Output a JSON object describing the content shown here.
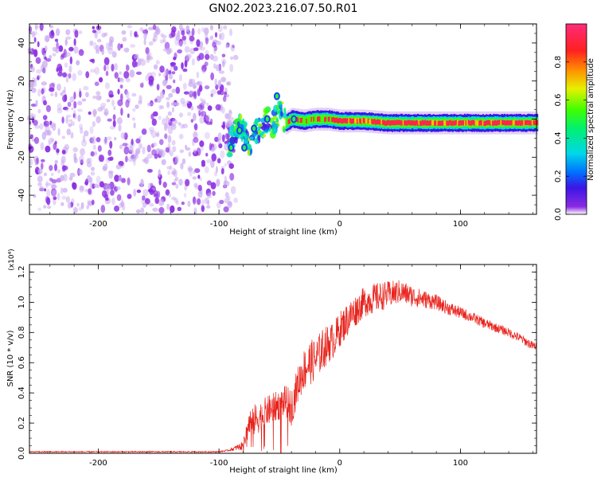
{
  "title": "GN02.2023.216.07.50.R01",
  "colors": {
    "snr_line": "#e8231c",
    "spectrogram_noise": "#8a2be2",
    "spectrogram_noise_light": "#c9a8f0",
    "spectrogram_background": "#ffffff"
  },
  "chart_data": [
    {
      "type": "heatmap",
      "name": "spectrogram",
      "xlabel": "Height of straight line (km)",
      "ylabel": "Frequency (Hz)",
      "xlim": [
        -257,
        163
      ],
      "ylim": [
        -50,
        50
      ],
      "xticks": [
        -200,
        -100,
        0,
        100
      ],
      "yticks": [
        -40,
        -20,
        0,
        20,
        40
      ],
      "colorbar": {
        "label": "Normalized spectral amplitude",
        "range": [
          0,
          1
        ],
        "ticks": [
          "0.0",
          "0.2",
          "0.4",
          "0.6",
          "0.8"
        ],
        "colormap": "rainbow (purple-blue-cyan-green-yellow-red-magenta)"
      },
      "features": [
        {
          "region": "noise",
          "x_range": [
            -257,
            -90
          ],
          "freq_range": [
            -50,
            50
          ],
          "amplitude": "low (0.0-0.15)"
        },
        {
          "region": "onset",
          "x_range": [
            -92,
            -45
          ],
          "freq_range": [
            -18,
            13
          ],
          "amplitude": "medium to high, scattered"
        },
        {
          "region": "stable signal",
          "x_range": [
            -45,
            163
          ],
          "freq_center": -2,
          "freq_halfwidth": 3,
          "amplitude": "high (0.8-1.0)"
        }
      ],
      "signal_track": {
        "x": [
          -92,
          -85,
          -80,
          -75,
          -70,
          -65,
          -60,
          -55,
          -50,
          -45,
          -40,
          -30,
          -20,
          -10,
          0,
          20,
          40,
          60,
          80,
          100,
          120,
          140,
          163
        ],
        "freq": [
          -15,
          -5,
          -4,
          -15,
          -6,
          -5,
          0,
          -3,
          5,
          -2,
          0,
          -1,
          0,
          0,
          -1,
          -1,
          -2,
          -2,
          -2,
          -2,
          -2,
          -2,
          -2
        ]
      }
    },
    {
      "type": "line",
      "name": "snr",
      "xlabel": "Height of straight line (km)",
      "ylabel": "SNR (10 * v/v)",
      "y_multiplier": "(x10⁴)",
      "xlim": [
        -257,
        163
      ],
      "ylim": [
        0,
        1.25
      ],
      "xticks": [
        -200,
        -100,
        0,
        100
      ],
      "yticks": [
        "0.0",
        "0.2",
        "0.4",
        "0.6",
        "0.8",
        "1.0",
        "1.2"
      ],
      "series": [
        {
          "x": [
            -257,
            -200,
            -100,
            -92,
            -80,
            -75,
            -70,
            -65,
            -60,
            -55,
            -50,
            -45,
            -40,
            -35,
            -30,
            -25,
            -20,
            -15,
            -10,
            -5,
            0,
            10,
            20,
            30,
            40,
            50,
            60,
            70,
            80,
            90,
            100,
            110,
            120,
            130,
            140,
            150,
            160
          ],
          "y": [
            0.01,
            0.01,
            0.01,
            0.02,
            0.05,
            0.2,
            0.22,
            0.25,
            0.28,
            0.3,
            0.32,
            0.35,
            0.3,
            0.45,
            0.55,
            0.6,
            0.62,
            0.68,
            0.72,
            0.75,
            0.82,
            0.92,
            1.0,
            1.03,
            1.05,
            1.07,
            1.04,
            1.02,
            1.0,
            0.96,
            0.93,
            0.9,
            0.86,
            0.83,
            0.8,
            0.76,
            0.71
          ],
          "noise_amplitude": [
            0.004,
            0.004,
            0.004,
            0.006,
            0.03,
            0.1,
            0.11,
            0.1,
            0.1,
            0.1,
            0.1,
            0.1,
            0.12,
            0.12,
            0.14,
            0.15,
            0.14,
            0.14,
            0.13,
            0.12,
            0.12,
            0.11,
            0.1,
            0.1,
            0.09,
            0.08,
            0.07,
            0.06,
            0.05,
            0.045,
            0.04,
            0.035,
            0.035,
            0.03,
            0.03,
            0.03,
            0.03
          ]
        }
      ]
    }
  ]
}
